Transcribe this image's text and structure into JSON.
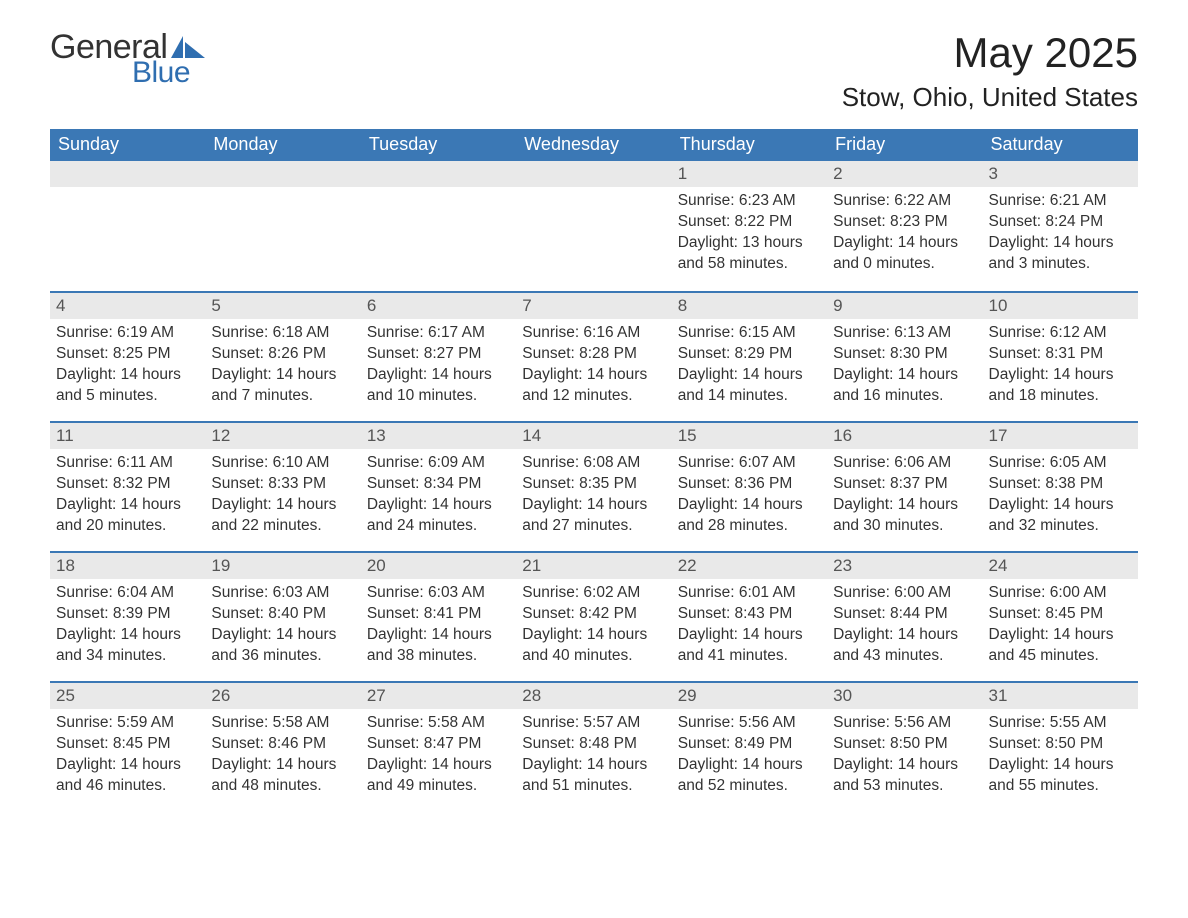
{
  "brand": {
    "name_part1": "General",
    "name_part2": "Blue",
    "text_color": "#333333",
    "brand_color": "#2f6eb0"
  },
  "header": {
    "month_title": "May 2025",
    "location": "Stow, Ohio, United States"
  },
  "colors": {
    "header_bg": "#3b78b5",
    "header_text": "#ffffff",
    "daynum_bg": "#e9e9e9",
    "daynum_text": "#555555",
    "body_text": "#333333",
    "row_divider": "#3b78b5",
    "page_bg": "#ffffff"
  },
  "typography": {
    "month_title_fontsize": 42,
    "location_fontsize": 26,
    "weekday_fontsize": 18,
    "daynum_fontsize": 17,
    "body_fontsize": 15.5
  },
  "weekdays": [
    "Sunday",
    "Monday",
    "Tuesday",
    "Wednesday",
    "Thursday",
    "Friday",
    "Saturday"
  ],
  "labels": {
    "sunrise": "Sunrise:",
    "sunset": "Sunset:",
    "daylight": "Daylight:"
  },
  "weeks": [
    [
      {
        "empty": true
      },
      {
        "empty": true
      },
      {
        "empty": true
      },
      {
        "empty": true
      },
      {
        "day": "1",
        "sunrise": "6:23 AM",
        "sunset": "8:22 PM",
        "daylight1": "13 hours",
        "daylight2": "and 58 minutes."
      },
      {
        "day": "2",
        "sunrise": "6:22 AM",
        "sunset": "8:23 PM",
        "daylight1": "14 hours",
        "daylight2": "and 0 minutes."
      },
      {
        "day": "3",
        "sunrise": "6:21 AM",
        "sunset": "8:24 PM",
        "daylight1": "14 hours",
        "daylight2": "and 3 minutes."
      }
    ],
    [
      {
        "day": "4",
        "sunrise": "6:19 AM",
        "sunset": "8:25 PM",
        "daylight1": "14 hours",
        "daylight2": "and 5 minutes."
      },
      {
        "day": "5",
        "sunrise": "6:18 AM",
        "sunset": "8:26 PM",
        "daylight1": "14 hours",
        "daylight2": "and 7 minutes."
      },
      {
        "day": "6",
        "sunrise": "6:17 AM",
        "sunset": "8:27 PM",
        "daylight1": "14 hours",
        "daylight2": "and 10 minutes."
      },
      {
        "day": "7",
        "sunrise": "6:16 AM",
        "sunset": "8:28 PM",
        "daylight1": "14 hours",
        "daylight2": "and 12 minutes."
      },
      {
        "day": "8",
        "sunrise": "6:15 AM",
        "sunset": "8:29 PM",
        "daylight1": "14 hours",
        "daylight2": "and 14 minutes."
      },
      {
        "day": "9",
        "sunrise": "6:13 AM",
        "sunset": "8:30 PM",
        "daylight1": "14 hours",
        "daylight2": "and 16 minutes."
      },
      {
        "day": "10",
        "sunrise": "6:12 AM",
        "sunset": "8:31 PM",
        "daylight1": "14 hours",
        "daylight2": "and 18 minutes."
      }
    ],
    [
      {
        "day": "11",
        "sunrise": "6:11 AM",
        "sunset": "8:32 PM",
        "daylight1": "14 hours",
        "daylight2": "and 20 minutes."
      },
      {
        "day": "12",
        "sunrise": "6:10 AM",
        "sunset": "8:33 PM",
        "daylight1": "14 hours",
        "daylight2": "and 22 minutes."
      },
      {
        "day": "13",
        "sunrise": "6:09 AM",
        "sunset": "8:34 PM",
        "daylight1": "14 hours",
        "daylight2": "and 24 minutes."
      },
      {
        "day": "14",
        "sunrise": "6:08 AM",
        "sunset": "8:35 PM",
        "daylight1": "14 hours",
        "daylight2": "and 27 minutes."
      },
      {
        "day": "15",
        "sunrise": "6:07 AM",
        "sunset": "8:36 PM",
        "daylight1": "14 hours",
        "daylight2": "and 28 minutes."
      },
      {
        "day": "16",
        "sunrise": "6:06 AM",
        "sunset": "8:37 PM",
        "daylight1": "14 hours",
        "daylight2": "and 30 minutes."
      },
      {
        "day": "17",
        "sunrise": "6:05 AM",
        "sunset": "8:38 PM",
        "daylight1": "14 hours",
        "daylight2": "and 32 minutes."
      }
    ],
    [
      {
        "day": "18",
        "sunrise": "6:04 AM",
        "sunset": "8:39 PM",
        "daylight1": "14 hours",
        "daylight2": "and 34 minutes."
      },
      {
        "day": "19",
        "sunrise": "6:03 AM",
        "sunset": "8:40 PM",
        "daylight1": "14 hours",
        "daylight2": "and 36 minutes."
      },
      {
        "day": "20",
        "sunrise": "6:03 AM",
        "sunset": "8:41 PM",
        "daylight1": "14 hours",
        "daylight2": "and 38 minutes."
      },
      {
        "day": "21",
        "sunrise": "6:02 AM",
        "sunset": "8:42 PM",
        "daylight1": "14 hours",
        "daylight2": "and 40 minutes."
      },
      {
        "day": "22",
        "sunrise": "6:01 AM",
        "sunset": "8:43 PM",
        "daylight1": "14 hours",
        "daylight2": "and 41 minutes."
      },
      {
        "day": "23",
        "sunrise": "6:00 AM",
        "sunset": "8:44 PM",
        "daylight1": "14 hours",
        "daylight2": "and 43 minutes."
      },
      {
        "day": "24",
        "sunrise": "6:00 AM",
        "sunset": "8:45 PM",
        "daylight1": "14 hours",
        "daylight2": "and 45 minutes."
      }
    ],
    [
      {
        "day": "25",
        "sunrise": "5:59 AM",
        "sunset": "8:45 PM",
        "daylight1": "14 hours",
        "daylight2": "and 46 minutes."
      },
      {
        "day": "26",
        "sunrise": "5:58 AM",
        "sunset": "8:46 PM",
        "daylight1": "14 hours",
        "daylight2": "and 48 minutes."
      },
      {
        "day": "27",
        "sunrise": "5:58 AM",
        "sunset": "8:47 PM",
        "daylight1": "14 hours",
        "daylight2": "and 49 minutes."
      },
      {
        "day": "28",
        "sunrise": "5:57 AM",
        "sunset": "8:48 PM",
        "daylight1": "14 hours",
        "daylight2": "and 51 minutes."
      },
      {
        "day": "29",
        "sunrise": "5:56 AM",
        "sunset": "8:49 PM",
        "daylight1": "14 hours",
        "daylight2": "and 52 minutes."
      },
      {
        "day": "30",
        "sunrise": "5:56 AM",
        "sunset": "8:50 PM",
        "daylight1": "14 hours",
        "daylight2": "and 53 minutes."
      },
      {
        "day": "31",
        "sunrise": "5:55 AM",
        "sunset": "8:50 PM",
        "daylight1": "14 hours",
        "daylight2": "and 55 minutes."
      }
    ]
  ]
}
